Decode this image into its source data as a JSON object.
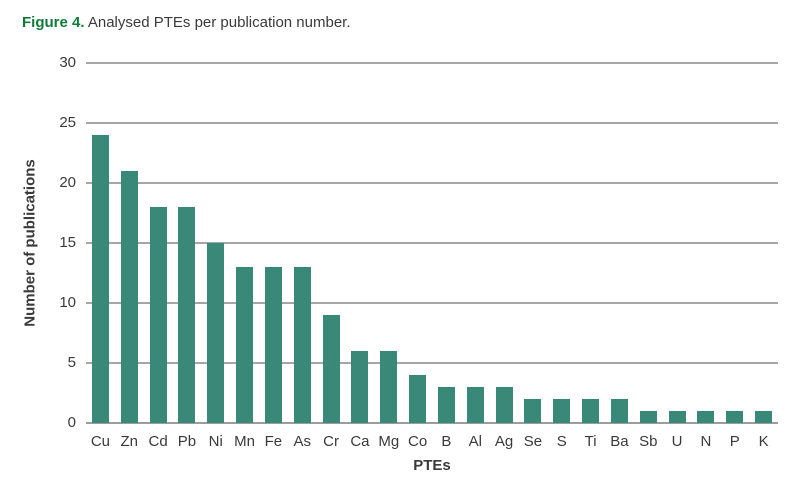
{
  "title": {
    "label": "Figure 4.",
    "caption": " Analysed PTEs per publication number."
  },
  "colors": {
    "figure_label_green": "#0e7c38",
    "bar_teal": "#3a8878",
    "gridline_gray": "#a6a6a6",
    "baseline_gray": "#9c9c9c",
    "text_dark": "#3a3a3a"
  },
  "chart_data": {
    "type": "bar",
    "title": "Figure 4. Analysed PTEs per publication number.",
    "categories": [
      "Cu",
      "Zn",
      "Cd",
      "Pb",
      "Ni",
      "Mn",
      "Fe",
      "As",
      "Cr",
      "Ca",
      "Mg",
      "Co",
      "B",
      "Al",
      "Ag",
      "Se",
      "S",
      "Ti",
      "Ba",
      "Sb",
      "U",
      "N",
      "P",
      "K"
    ],
    "values": [
      24,
      21,
      18,
      18,
      15,
      13,
      13,
      13,
      9,
      6,
      6,
      4,
      3,
      3,
      3,
      2,
      2,
      2,
      2,
      1,
      1,
      1,
      1,
      1
    ],
    "xlabel": "PTEs",
    "ylabel": "Number of publications",
    "ylim": [
      0,
      30
    ],
    "yticks": [
      0,
      5,
      10,
      15,
      20,
      25,
      30
    ],
    "grid": true,
    "legend": "none",
    "bar_color": "#3a8878"
  }
}
